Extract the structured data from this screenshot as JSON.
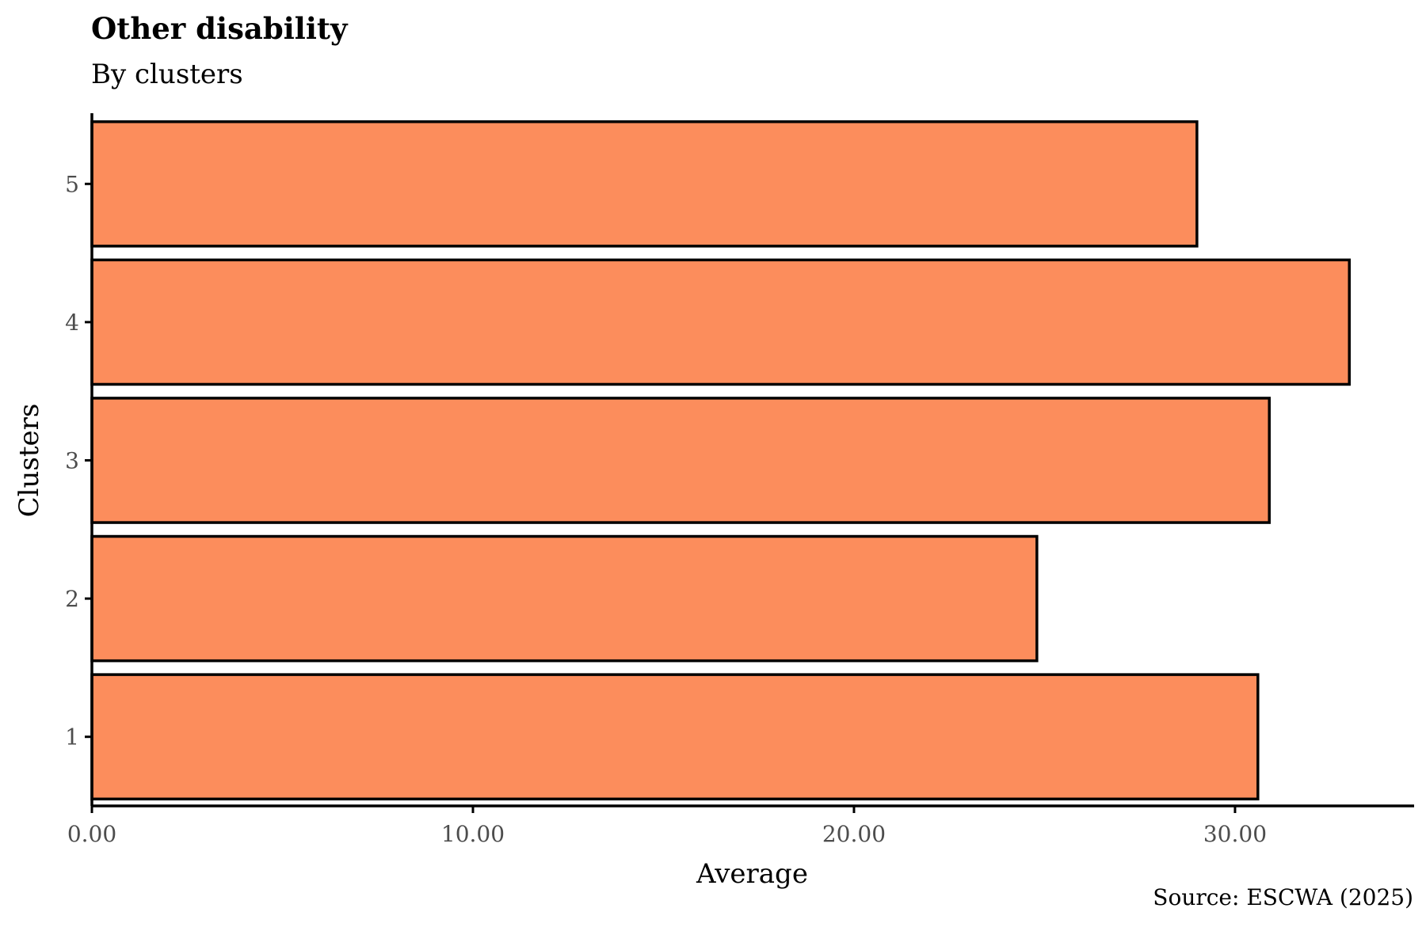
{
  "chart_data": {
    "type": "bar",
    "orientation": "horizontal",
    "title": "Other disability",
    "subtitle": "By clusters",
    "xlabel": "Average",
    "ylabel": "Clusters",
    "source": "Source: ESCWA (2025)",
    "categories": [
      "1",
      "2",
      "3",
      "4",
      "5"
    ],
    "values": [
      30.6,
      24.8,
      30.9,
      33.0,
      29.0
    ],
    "xlim": [
      0,
      34.7
    ],
    "xticks": [
      0,
      10,
      20,
      30
    ],
    "xtick_labels": [
      "0.00",
      "10.00",
      "20.00",
      "30.00"
    ],
    "grid": false,
    "legend": "none",
    "colors": {
      "bar_fill": "#FC8D5C",
      "bar_stroke": "#000000",
      "axis": "#000000"
    }
  }
}
